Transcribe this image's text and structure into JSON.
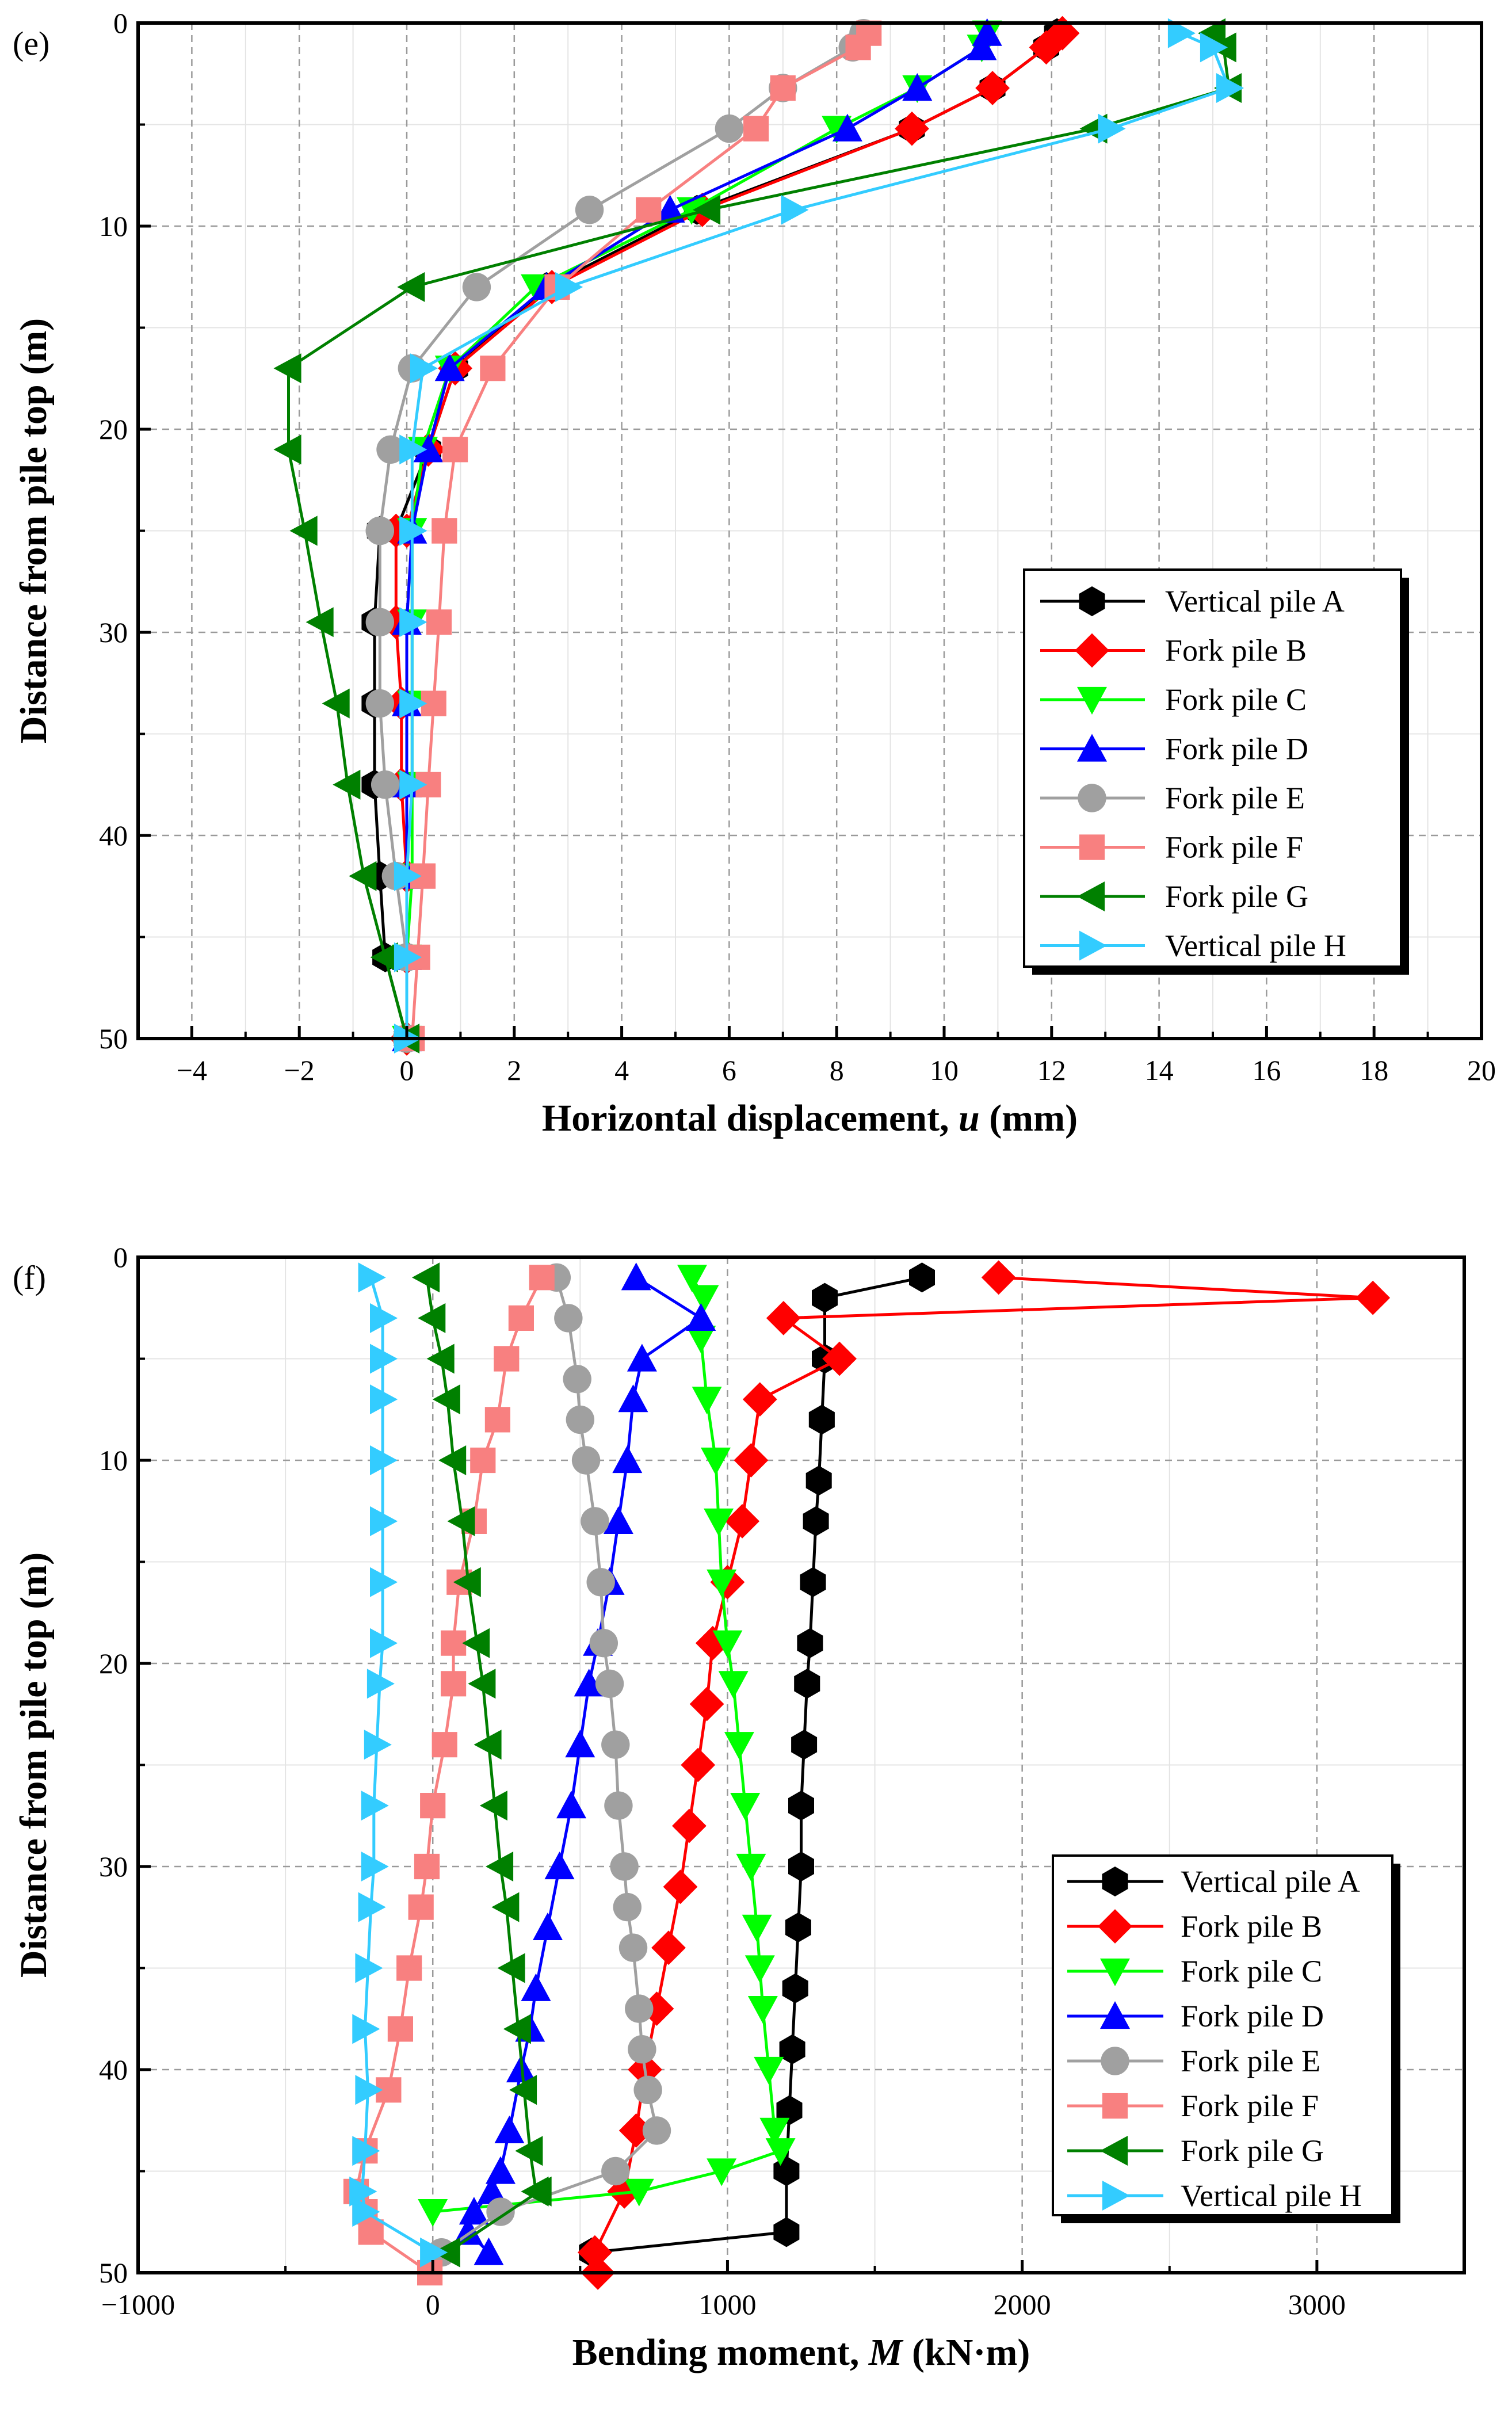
{
  "chart_data": [
    {
      "panel_label": "(e)",
      "type": "line",
      "xlabel_bold": "Horizontal displacement, ",
      "xlabel_var": "u",
      "xlabel_unit": " (mm)",
      "ylabel": "Distance from pile top (m)",
      "xlim": [
        -5,
        20
      ],
      "ylim": [
        50,
        0
      ],
      "y_reversed": true,
      "xticks": [
        -4,
        -2,
        0,
        2,
        4,
        6,
        8,
        10,
        12,
        14,
        16,
        18,
        20
      ],
      "yticks": [
        0,
        10,
        20,
        30,
        40,
        50
      ],
      "grid": true,
      "legend_position": "lower-right",
      "series": [
        {
          "name": "Vertical pile A",
          "color": "#000000",
          "marker": "hexagon",
          "x": [
            12.1,
            11.9,
            10.9,
            9.4,
            5.4,
            2.6,
            0.9,
            0.4,
            -0.2,
            -0.5,
            -0.6,
            -0.6,
            -0.6,
            -0.5,
            -0.4,
            0
          ],
          "y": [
            0.5,
            1.2,
            3.2,
            5.2,
            9.2,
            13,
            17,
            21,
            25,
            25,
            29.5,
            33.5,
            37.5,
            42,
            46,
            50
          ]
        },
        {
          "name": "Fork pile B",
          "color": "#ff0000",
          "marker": "diamond",
          "x": [
            12.2,
            11.9,
            10.9,
            9.4,
            5.5,
            2.7,
            0.9,
            0.4,
            0,
            -0.2,
            -0.2,
            -0.1,
            -0.1,
            0,
            0,
            0
          ],
          "y": [
            0.5,
            1.2,
            3.2,
            5.2,
            9.2,
            13,
            17,
            21,
            25,
            25,
            29.5,
            33.5,
            37.5,
            42,
            46,
            50
          ]
        },
        {
          "name": "Fork pile C",
          "color": "#00ff00",
          "marker": "triangle-down",
          "x": [
            10.8,
            10.7,
            9.5,
            8.0,
            5.3,
            2.4,
            0.8,
            0.3,
            0.1,
            0.1,
            0.1,
            0.1,
            0.1,
            0.1,
            0,
            0
          ],
          "y": [
            0.5,
            1.2,
            3.2,
            5.2,
            9.2,
            13,
            17,
            21,
            25,
            25,
            29.5,
            33.5,
            37.5,
            42,
            46,
            50
          ]
        },
        {
          "name": "Fork pile D",
          "color": "#0000ff",
          "marker": "triangle-up",
          "x": [
            10.8,
            10.7,
            9.5,
            8.2,
            4.9,
            2.6,
            0.8,
            0.4,
            0.1,
            0.1,
            0,
            0,
            0,
            0,
            0,
            0
          ],
          "y": [
            0.5,
            1.2,
            3.2,
            5.2,
            9.2,
            13,
            17,
            21,
            25,
            25,
            29.5,
            33.5,
            37.5,
            42,
            46,
            50
          ]
        },
        {
          "name": "Fork pile E",
          "color": "#a0a0a0",
          "marker": "circle",
          "x": [
            8.5,
            8.3,
            7.0,
            6.0,
            3.4,
            1.3,
            0.1,
            -0.3,
            -0.5,
            -0.5,
            -0.5,
            -0.5,
            -0.4,
            -0.2,
            0,
            0
          ],
          "y": [
            0.5,
            1.2,
            3.2,
            5.2,
            9.2,
            13,
            17,
            21,
            25,
            25,
            29.5,
            33.5,
            37.5,
            42,
            46,
            50
          ]
        },
        {
          "name": "Fork pile F",
          "color": "#f88080",
          "marker": "square",
          "x": [
            8.6,
            8.4,
            7.0,
            6.5,
            4.5,
            2.8,
            1.6,
            0.9,
            0.7,
            0.7,
            0.6,
            0.5,
            0.4,
            0.3,
            0.2,
            0.1
          ],
          "y": [
            0.5,
            1.2,
            3.2,
            5.2,
            9.2,
            13,
            17,
            21,
            25,
            25,
            29.5,
            33.5,
            37.5,
            42,
            46,
            50
          ]
        },
        {
          "name": "Fork pile G",
          "color": "#008000",
          "marker": "triangle-left",
          "x": [
            15.0,
            15.2,
            15.3,
            12.8,
            5.6,
            0.1,
            -2.2,
            -2.2,
            -1.9,
            -1.9,
            -1.6,
            -1.3,
            -1.1,
            -0.8,
            -0.4,
            0
          ],
          "y": [
            0.5,
            1.2,
            3.2,
            5.2,
            9.2,
            13,
            17,
            21,
            25,
            25,
            29.5,
            33.5,
            37.5,
            42,
            46,
            50
          ]
        },
        {
          "name": "Vertical pile H",
          "color": "#33ccff",
          "marker": "triangle-right",
          "x": [
            14.4,
            15.0,
            15.3,
            13.1,
            7.2,
            3.0,
            0.3,
            0.1,
            0.1,
            0.1,
            0.1,
            0.1,
            0.1,
            0,
            0,
            0
          ],
          "y": [
            0.5,
            1.2,
            3.2,
            5.2,
            9.2,
            13,
            17,
            21,
            25,
            25,
            29.5,
            33.5,
            37.5,
            42,
            46,
            50
          ]
        }
      ]
    },
    {
      "panel_label": "(f)",
      "type": "line",
      "xlabel_bold": "Bending moment, ",
      "xlabel_var": "M",
      "xlabel_unit": " (kN·m)",
      "ylabel": "Distance from pile top (m)",
      "xlim": [
        -1000,
        3500
      ],
      "ylim": [
        50,
        0
      ],
      "y_reversed": true,
      "xticks": [
        -1000,
        0,
        1000,
        2000,
        3000
      ],
      "xtick_labels": [
        "−1000",
        "0",
        "1000",
        "2000",
        "3000"
      ],
      "yticks": [
        0,
        10,
        20,
        30,
        40,
        50
      ],
      "grid": true,
      "legend_position": "lower-right",
      "series": [
        {
          "name": "Vertical pile A",
          "color": "#000000",
          "marker": "hexagon",
          "x": [
            1660,
            1330,
            1330,
            1320,
            1310,
            1300,
            1290,
            1280,
            1270,
            1260,
            1250,
            1250,
            1240,
            1230,
            1220,
            1210,
            1200,
            1200,
            540
          ],
          "y": [
            1,
            2,
            5,
            8,
            11,
            13,
            16,
            19,
            21,
            24,
            27,
            30,
            33,
            36,
            39,
            42,
            45,
            48,
            49
          ]
        },
        {
          "name": "Fork pile B",
          "color": "#ff0000",
          "marker": "diamond",
          "x": [
            1920,
            3190,
            1190,
            1380,
            1110,
            1080,
            1050,
            1000,
            950,
            930,
            900,
            870,
            840,
            800,
            760,
            720,
            690,
            650,
            550,
            560
          ],
          "y": [
            1,
            2,
            3,
            5,
            7,
            10,
            13,
            16,
            19,
            22,
            25,
            28,
            31,
            34,
            37,
            40,
            43,
            46,
            49,
            50
          ]
        },
        {
          "name": "Fork pile C",
          "color": "#00ff00",
          "marker": "triangle-down",
          "x": [
            880,
            920,
            910,
            930,
            960,
            970,
            980,
            1000,
            1020,
            1040,
            1060,
            1080,
            1100,
            1110,
            1120,
            1140,
            1160,
            1180,
            980,
            700,
            0
          ],
          "y": [
            1,
            2,
            4,
            7,
            10,
            13,
            16,
            19,
            21,
            24,
            27,
            30,
            33,
            35,
            37,
            40,
            43,
            44,
            45,
            46,
            47
          ]
        },
        {
          "name": "Fork pile D",
          "color": "#0000ff",
          "marker": "triangle-up",
          "x": [
            690,
            910,
            710,
            680,
            660,
            630,
            600,
            560,
            530,
            500,
            470,
            430,
            390,
            350,
            330,
            300,
            260,
            230,
            200,
            140,
            120,
            190
          ],
          "y": [
            1,
            3,
            5,
            7,
            10,
            13,
            16,
            19,
            21,
            24,
            27,
            30,
            33,
            36,
            38,
            40,
            43,
            45,
            46,
            47,
            48,
            49
          ]
        },
        {
          "name": "Fork pile E",
          "color": "#a0a0a0",
          "marker": "circle",
          "x": [
            420,
            460,
            490,
            500,
            520,
            550,
            570,
            580,
            600,
            620,
            630,
            650,
            660,
            680,
            700,
            710,
            730,
            760,
            620,
            230,
            30
          ],
          "y": [
            1,
            3,
            6,
            8,
            10,
            13,
            16,
            19,
            21,
            24,
            27,
            30,
            32,
            34,
            37,
            39,
            41,
            43,
            45,
            47,
            49
          ]
        },
        {
          "name": "Fork pile F",
          "color": "#f88080",
          "marker": "square",
          "x": [
            370,
            300,
            250,
            220,
            170,
            140,
            90,
            70,
            70,
            40,
            0,
            -20,
            -40,
            -80,
            -110,
            -150,
            -230,
            -260,
            -230,
            -210,
            -10
          ],
          "y": [
            1,
            3,
            5,
            8,
            10,
            13,
            16,
            19,
            21,
            24,
            27,
            30,
            32,
            35,
            38,
            41,
            44,
            46,
            47,
            48,
            50
          ]
        },
        {
          "name": "Fork pile G",
          "color": "#008000",
          "marker": "triangle-left",
          "x": [
            -20,
            0,
            30,
            50,
            70,
            100,
            120,
            150,
            170,
            190,
            210,
            230,
            250,
            270,
            290,
            310,
            330,
            350,
            360,
            50
          ],
          "y": [
            1,
            3,
            5,
            7,
            10,
            13,
            16,
            19,
            21,
            24,
            27,
            30,
            32,
            35,
            38,
            41,
            44,
            46,
            46,
            49
          ]
        },
        {
          "name": "Vertical pile H",
          "color": "#33ccff",
          "marker": "triangle-right",
          "x": [
            -210,
            -170,
            -170,
            -170,
            -170,
            -170,
            -170,
            -170,
            -180,
            -190,
            -200,
            -200,
            -210,
            -220,
            -230,
            -220,
            -230,
            -240,
            -230,
            0
          ],
          "y": [
            1,
            3,
            5,
            7,
            10,
            13,
            16,
            19,
            21,
            24,
            27,
            30,
            32,
            35,
            38,
            41,
            44,
            46,
            47,
            49
          ]
        }
      ]
    }
  ]
}
